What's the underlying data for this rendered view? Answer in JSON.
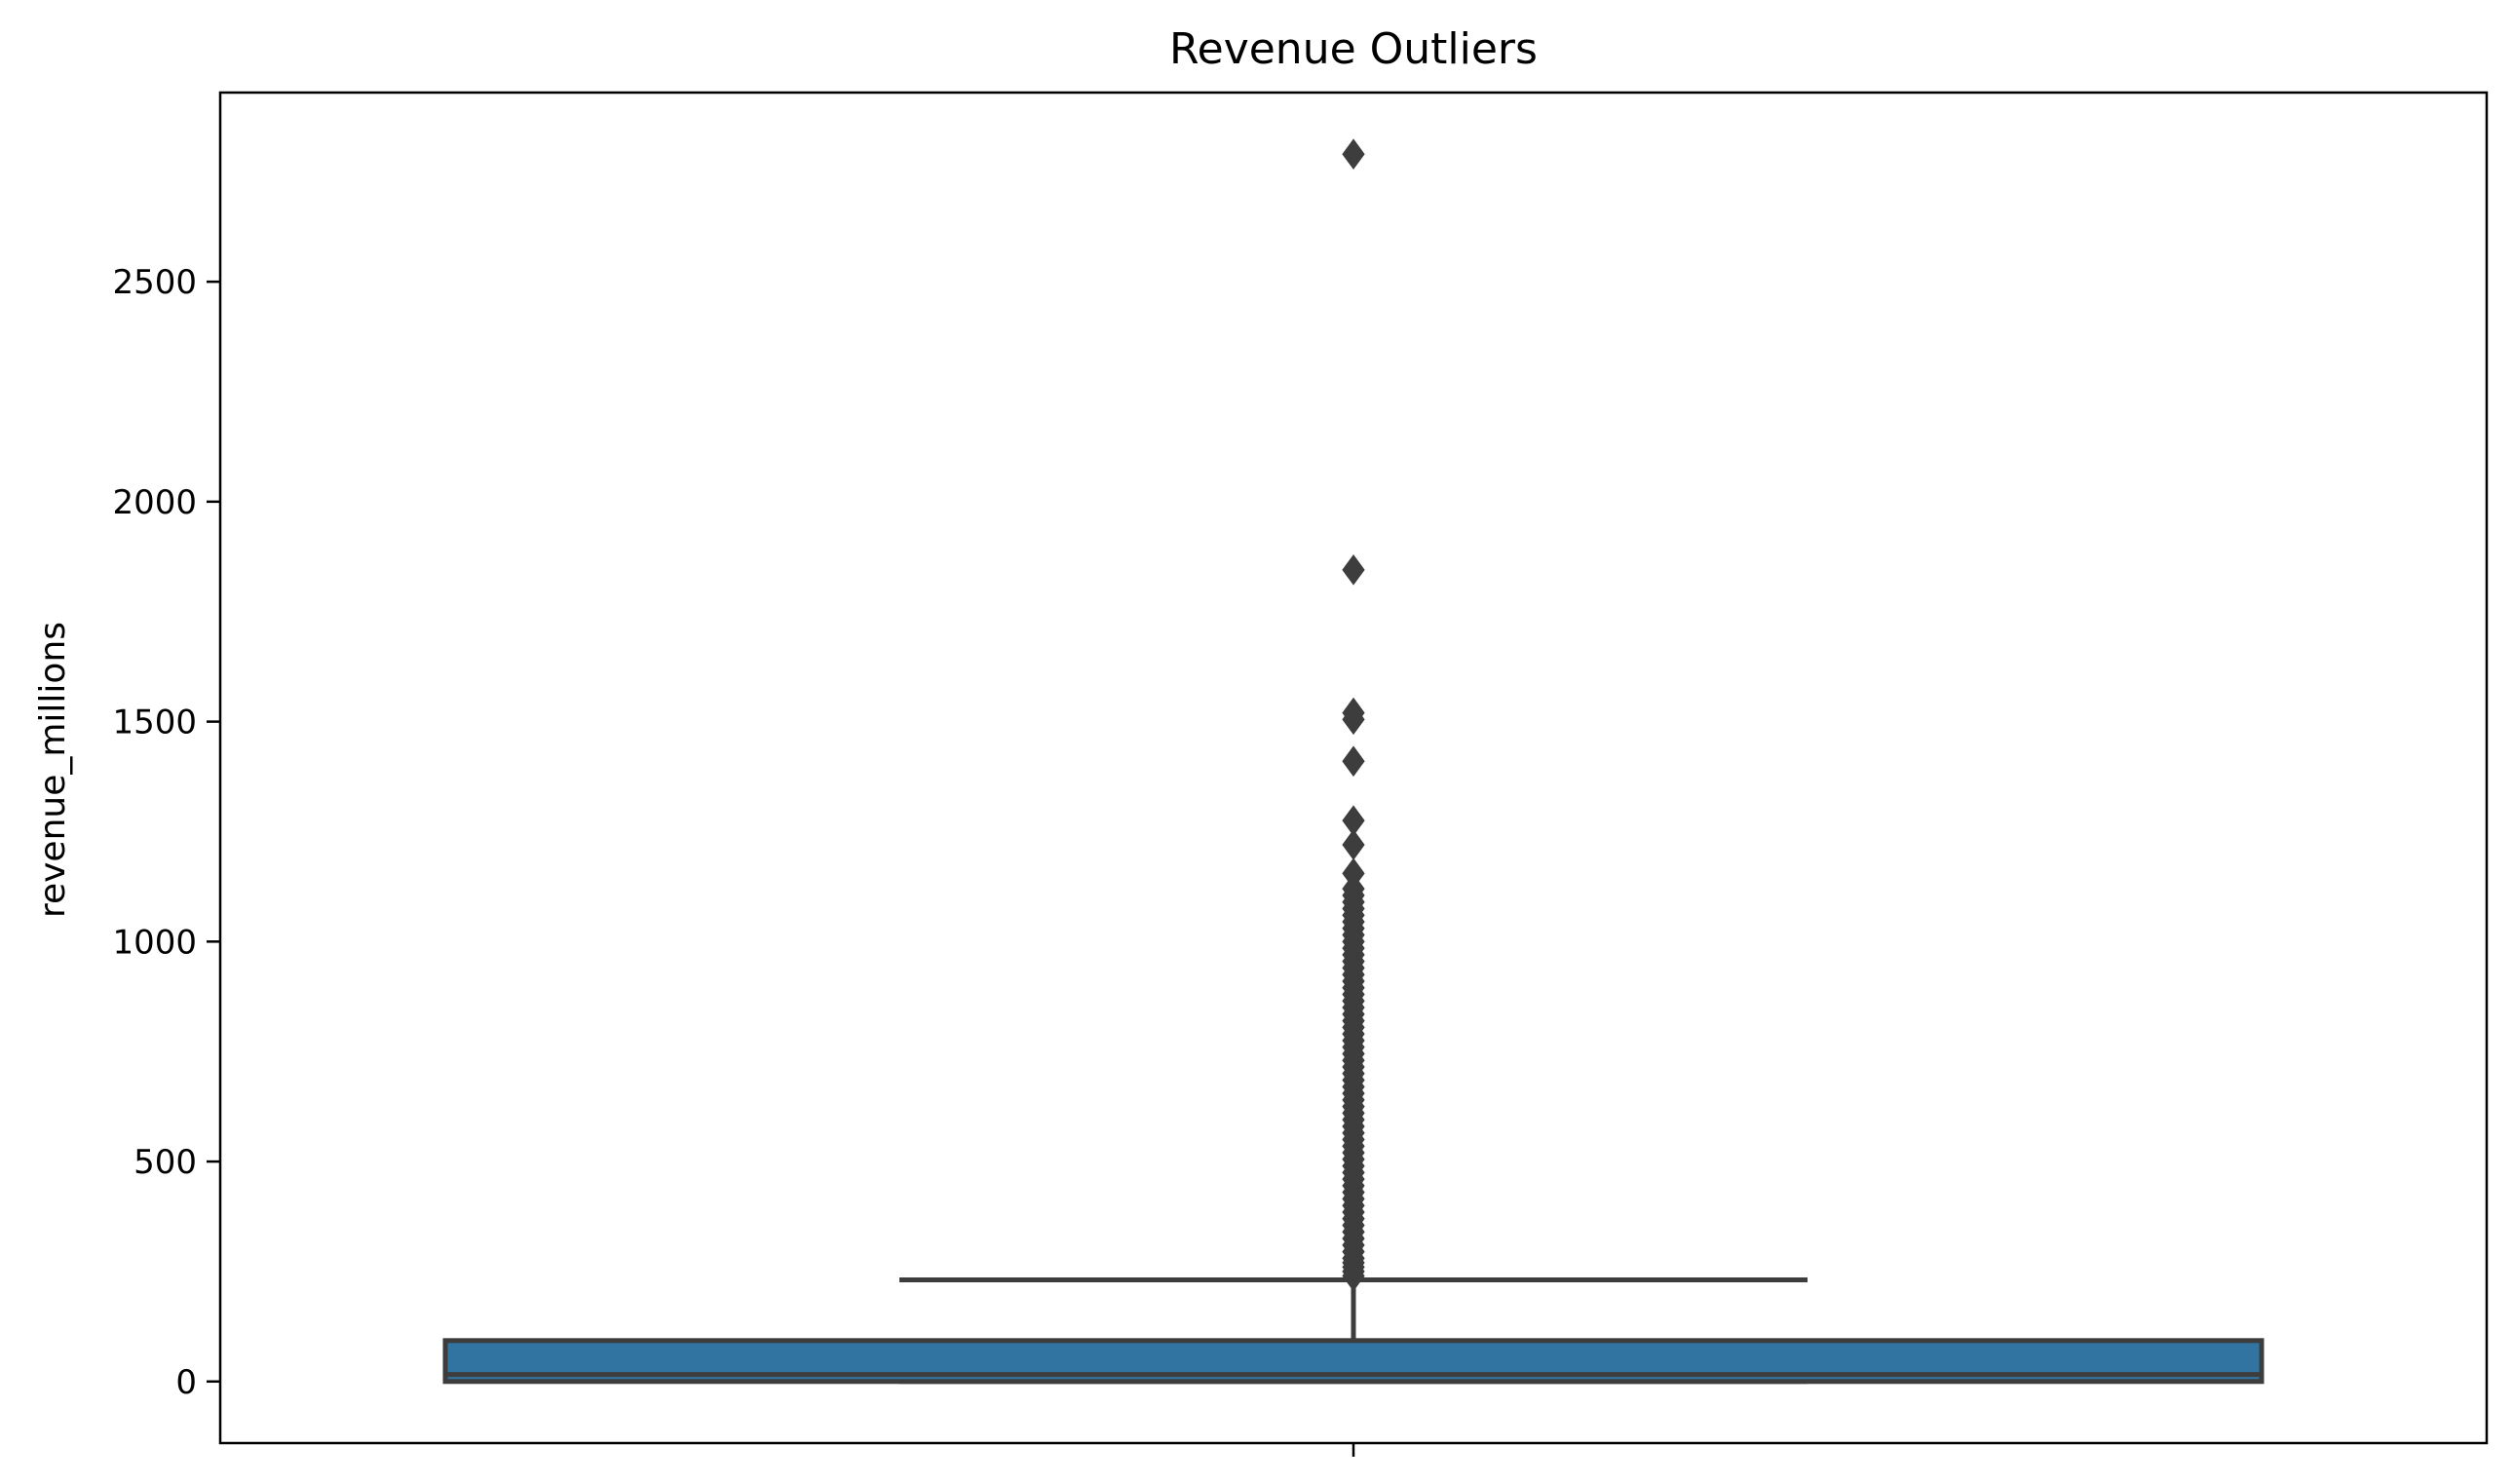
{
  "chart_data": {
    "type": "box",
    "title": "Revenue Outliers",
    "xlabel": "",
    "ylabel": "revenue_millions",
    "ylim": [
      -140,
      2930
    ],
    "yticks": [
      0,
      500,
      1000,
      1500,
      2000,
      2500
    ],
    "grid": false,
    "box": {
      "q1": 0,
      "median": 16,
      "q3": 93,
      "whisker_low": 0,
      "whisker_high": 231
    },
    "outliers": [
      2790,
      1845,
      1520,
      1505,
      1410,
      1275,
      1220,
      1155,
      1120,
      1105,
      1090,
      1075,
      1060,
      1045,
      1030,
      1015,
      1000,
      985,
      970,
      955,
      940,
      925,
      910,
      895,
      880,
      865,
      850,
      835,
      820,
      805,
      790,
      775,
      760,
      745,
      730,
      715,
      700,
      685,
      670,
      655,
      640,
      625,
      610,
      595,
      580,
      565,
      550,
      535,
      520,
      505,
      490,
      475,
      460,
      445,
      430,
      415,
      400,
      385,
      370,
      355,
      340,
      325,
      310,
      295,
      280,
      270,
      260,
      250,
      240
    ],
    "colors": {
      "box_fill": "#3274a1",
      "line": "#3d3d3d",
      "frame": "#000000"
    }
  }
}
